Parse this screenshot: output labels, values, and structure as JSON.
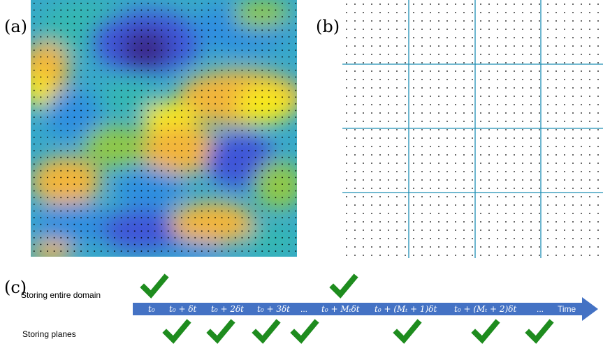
{
  "panels": {
    "a": "(a)",
    "b": "(b)",
    "c": "(c)"
  },
  "timeline": {
    "row_label_top": "Storing entire domain",
    "row_label_bottom": "Storing planes",
    "ticks": [
      "t₀",
      "t₀ + δt",
      "t₀ + 2δt",
      "t₀ + 3δt",
      "...",
      "t₀ + Mₜδt",
      "t₀ + (Mₜ + 1)δt",
      "t₀ + (Mₜ + 2)δt",
      "...",
      "Time"
    ],
    "entire_domain_checked_ticks": [
      0,
      5
    ],
    "planes_checked_ticks": [
      1,
      2,
      3,
      4,
      6,
      7,
      8
    ]
  },
  "colors": {
    "arrow": "#4472c4",
    "check": "#1e8c1e",
    "grid_line": "#1f8fb5",
    "field_palette": [
      "#3a2a8c",
      "#3f56d8",
      "#2f8fe0",
      "#34b7b3",
      "#8fc84a",
      "#f2b53a",
      "#f7e81e"
    ]
  }
}
